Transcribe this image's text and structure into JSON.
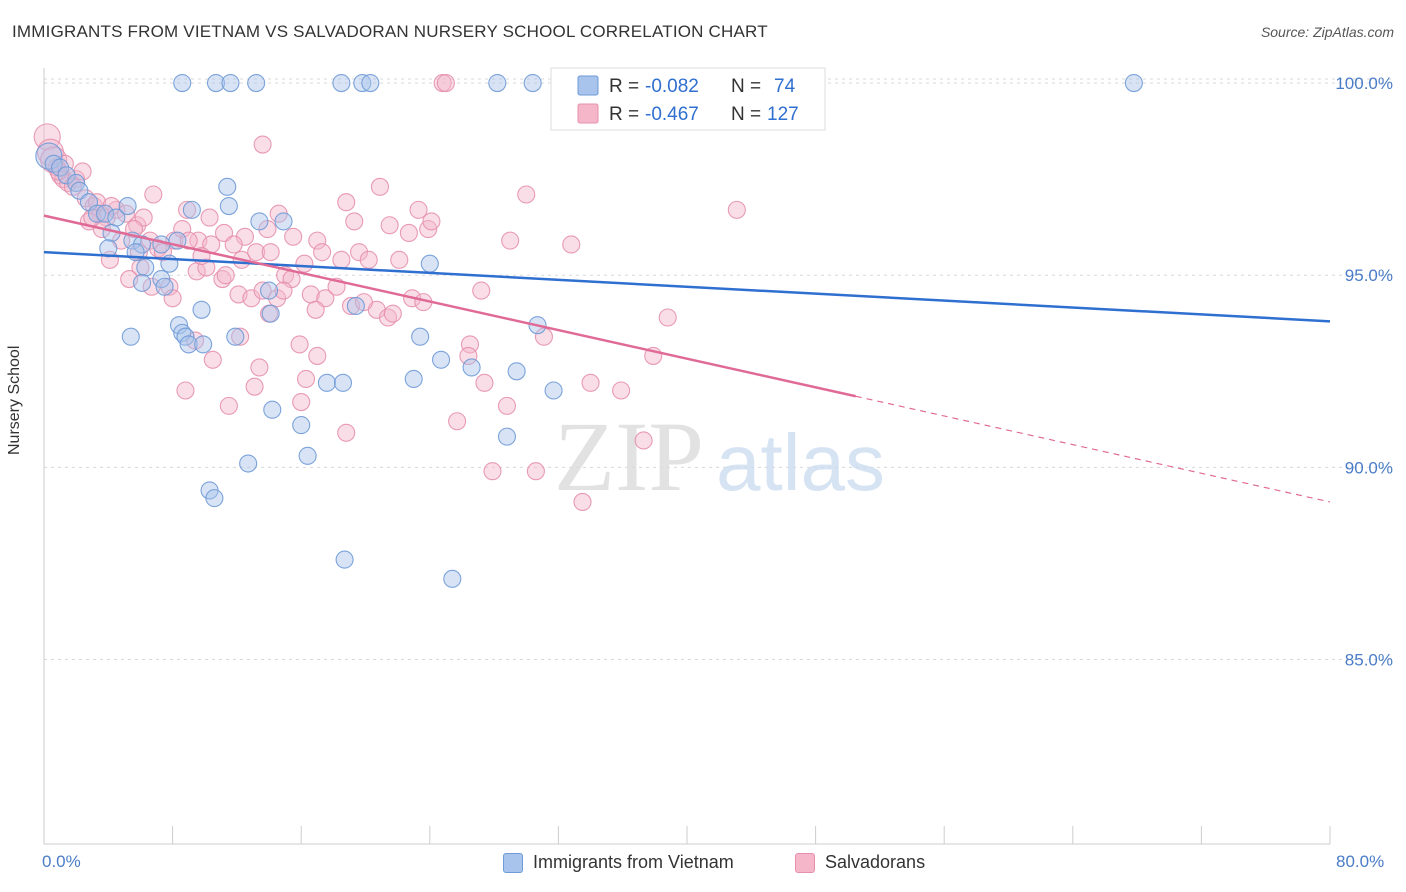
{
  "header": {
    "title": "IMMIGRANTS FROM VIETNAM VS SALVADORAN NURSERY SCHOOL CORRELATION CHART",
    "source": "Source: ZipAtlas.com"
  },
  "watermark": {
    "zip": "ZIP",
    "atlas": "atlas"
  },
  "colors": {
    "blue_fill": "#a9c4ec",
    "blue_stroke": "#6f9ad6",
    "blue_line": "#2f6fd0",
    "pink_fill": "#f5b6ca",
    "pink_stroke": "#e690ad",
    "pink_line": "#e06a96",
    "axis_text": "#4a7cc7"
  },
  "legend": {
    "rows": [
      {
        "r_label": "R =",
        "r_value": "-0.082",
        "n_label": "N =",
        "n_value": "74"
      },
      {
        "r_label": "R =",
        "r_value": "-0.467",
        "n_label": "N =",
        "n_value": "127"
      }
    ]
  },
  "chart_data": {
    "type": "scatter",
    "title": "IMMIGRANTS FROM VIETNAM VS SALVADORAN NURSERY SCHOOL CORRELATION CHART",
    "xlabel": "",
    "ylabel": "Nursery School",
    "xlim": [
      0,
      80
    ],
    "ylim": [
      80.2,
      100.6
    ],
    "x_tick_labels": [
      "0.0%",
      "80.0%"
    ],
    "y_ticks": [
      85,
      90,
      95,
      100
    ],
    "y_tick_labels": [
      "85.0%",
      "90.0%",
      "95.0%",
      "100.0%"
    ],
    "grid": true,
    "legend_position": "top-center",
    "series": [
      {
        "name": "Immigrants from Vietnam",
        "r": -0.082,
        "n": 74,
        "trend": {
          "x": [
            0,
            80
          ],
          "y": [
            95.6,
            93.8
          ]
        },
        "points": [
          [
            8.6,
            100
          ],
          [
            10.7,
            100
          ],
          [
            11.6,
            100
          ],
          [
            13.2,
            100
          ],
          [
            18.5,
            100
          ],
          [
            19.8,
            100
          ],
          [
            20.3,
            100
          ],
          [
            28.2,
            100
          ],
          [
            30.4,
            100
          ],
          [
            67.8,
            100
          ],
          [
            0.3,
            98.1
          ],
          [
            0.6,
            97.9
          ],
          [
            1.0,
            97.8
          ],
          [
            1.4,
            97.6
          ],
          [
            2.0,
            97.4
          ],
          [
            2.2,
            97.2
          ],
          [
            2.8,
            96.9
          ],
          [
            3.3,
            96.6
          ],
          [
            3.8,
            96.6
          ],
          [
            4.5,
            96.5
          ],
          [
            5.2,
            96.8
          ],
          [
            11.4,
            97.3
          ],
          [
            9.2,
            96.7
          ],
          [
            11.5,
            96.8
          ],
          [
            13.4,
            96.4
          ],
          [
            14.9,
            96.4
          ],
          [
            4.2,
            96.1
          ],
          [
            5.5,
            95.9
          ],
          [
            6.1,
            95.8
          ],
          [
            7.3,
            95.8
          ],
          [
            8.3,
            95.9
          ],
          [
            4.0,
            95.7
          ],
          [
            5.7,
            95.6
          ],
          [
            6.3,
            95.2
          ],
          [
            7.8,
            95.3
          ],
          [
            24.0,
            95.3
          ],
          [
            6.1,
            94.8
          ],
          [
            7.3,
            94.9
          ],
          [
            7.5,
            94.7
          ],
          [
            14.0,
            94.6
          ],
          [
            14.1,
            94.0
          ],
          [
            19.4,
            94.2
          ],
          [
            9.8,
            94.1
          ],
          [
            5.4,
            93.4
          ],
          [
            8.4,
            93.7
          ],
          [
            8.6,
            93.5
          ],
          [
            8.8,
            93.4
          ],
          [
            9.0,
            93.2
          ],
          [
            9.9,
            93.2
          ],
          [
            11.9,
            93.4
          ],
          [
            23.4,
            93.4
          ],
          [
            30.7,
            93.7
          ],
          [
            24.7,
            92.8
          ],
          [
            26.6,
            92.6
          ],
          [
            29.4,
            92.5
          ],
          [
            23.0,
            92.3
          ],
          [
            17.6,
            92.2
          ],
          [
            18.6,
            92.2
          ],
          [
            31.7,
            92.0
          ],
          [
            14.2,
            91.5
          ],
          [
            16.0,
            91.1
          ],
          [
            28.8,
            90.8
          ],
          [
            16.4,
            90.3
          ],
          [
            12.7,
            90.1
          ],
          [
            10.3,
            89.4
          ],
          [
            10.6,
            89.2
          ],
          [
            18.7,
            87.6
          ],
          [
            25.4,
            87.1
          ]
        ]
      },
      {
        "name": "Salvadorans",
        "r": -0.467,
        "n": 127,
        "trend": {
          "x": [
            0,
            50.5
          ],
          "y": [
            96.55,
            91.85
          ]
        },
        "trend_dashed": {
          "x": [
            50.5,
            80
          ],
          "y": [
            91.85,
            89.1
          ]
        },
        "points": [
          [
            0.2,
            98.6
          ],
          [
            0.4,
            98.2
          ],
          [
            0.6,
            98.0
          ],
          [
            0.8,
            97.8
          ],
          [
            1.0,
            97.6
          ],
          [
            1.2,
            97.5
          ],
          [
            1.5,
            97.4
          ],
          [
            2.0,
            97.5
          ],
          [
            2.6,
            97.0
          ],
          [
            3.1,
            96.8
          ],
          [
            3.5,
            96.6
          ],
          [
            3.9,
            96.5
          ],
          [
            4.5,
            96.7
          ],
          [
            5.1,
            96.6
          ],
          [
            5.8,
            96.3
          ],
          [
            6.2,
            96.5
          ],
          [
            6.8,
            97.1
          ],
          [
            13.6,
            98.4
          ],
          [
            24.8,
            100
          ],
          [
            25.0,
            100
          ],
          [
            8.9,
            96.7
          ],
          [
            10.3,
            96.5
          ],
          [
            11.2,
            96.1
          ],
          [
            12.5,
            96.0
          ],
          [
            13.9,
            96.2
          ],
          [
            14.6,
            96.6
          ],
          [
            15.5,
            96.0
          ],
          [
            17.0,
            95.9
          ],
          [
            18.8,
            96.9
          ],
          [
            19.3,
            96.4
          ],
          [
            20.9,
            97.3
          ],
          [
            21.5,
            96.3
          ],
          [
            22.7,
            96.1
          ],
          [
            23.3,
            96.7
          ],
          [
            23.9,
            96.2
          ],
          [
            24.1,
            96.4
          ],
          [
            29.0,
            95.9
          ],
          [
            30.0,
            97.1
          ],
          [
            2.8,
            96.4
          ],
          [
            3.6,
            96.2
          ],
          [
            4.8,
            95.9
          ],
          [
            5.9,
            95.6
          ],
          [
            6.6,
            95.9
          ],
          [
            7.1,
            95.7
          ],
          [
            8.1,
            95.9
          ],
          [
            8.6,
            96.2
          ],
          [
            9.6,
            95.9
          ],
          [
            10.4,
            95.8
          ],
          [
            11.8,
            95.8
          ],
          [
            12.3,
            95.4
          ],
          [
            13.2,
            95.6
          ],
          [
            14.1,
            95.6
          ],
          [
            15.0,
            95.0
          ],
          [
            16.2,
            95.3
          ],
          [
            17.3,
            95.6
          ],
          [
            18.5,
            95.4
          ],
          [
            19.6,
            95.6
          ],
          [
            20.2,
            95.4
          ],
          [
            22.1,
            95.4
          ],
          [
            32.8,
            95.8
          ],
          [
            43.1,
            96.7
          ],
          [
            4.1,
            95.4
          ],
          [
            6.7,
            94.7
          ],
          [
            7.8,
            94.7
          ],
          [
            8.0,
            94.4
          ],
          [
            9.5,
            95.1
          ],
          [
            10.1,
            95.2
          ],
          [
            11.1,
            94.9
          ],
          [
            12.1,
            94.5
          ],
          [
            12.9,
            94.4
          ],
          [
            13.6,
            94.6
          ],
          [
            14.5,
            94.4
          ],
          [
            15.4,
            94.9
          ],
          [
            16.6,
            94.5
          ],
          [
            17.5,
            94.4
          ],
          [
            18.2,
            94.7
          ],
          [
            19.1,
            94.2
          ],
          [
            20.7,
            94.1
          ],
          [
            21.4,
            93.9
          ],
          [
            22.9,
            94.4
          ],
          [
            27.2,
            94.6
          ],
          [
            38.8,
            93.9
          ],
          [
            9.4,
            93.3
          ],
          [
            10.5,
            92.8
          ],
          [
            12.2,
            93.4
          ],
          [
            13.4,
            92.6
          ],
          [
            14.0,
            94.0
          ],
          [
            15.9,
            93.2
          ],
          [
            17.0,
            92.9
          ],
          [
            26.5,
            93.2
          ],
          [
            27.4,
            92.2
          ],
          [
            31.1,
            93.4
          ],
          [
            37.9,
            92.9
          ],
          [
            8.8,
            92.0
          ],
          [
            11.5,
            91.6
          ],
          [
            13.1,
            92.1
          ],
          [
            16.0,
            91.7
          ],
          [
            16.3,
            92.3
          ],
          [
            18.8,
            90.9
          ],
          [
            25.7,
            91.2
          ],
          [
            28.8,
            91.6
          ],
          [
            34.0,
            92.2
          ],
          [
            35.9,
            92.0
          ],
          [
            37.3,
            90.7
          ],
          [
            27.9,
            89.9
          ],
          [
            30.6,
            89.9
          ],
          [
            33.5,
            89.1
          ],
          [
            26.4,
            92.9
          ],
          [
            21.7,
            94.0
          ],
          [
            9.0,
            95.9
          ],
          [
            6.0,
            95.2
          ],
          [
            5.3,
            94.9
          ],
          [
            3.3,
            96.9
          ],
          [
            2.4,
            97.7
          ],
          [
            1.8,
            97.3
          ],
          [
            0.9,
            97.7
          ],
          [
            1.3,
            97.9
          ],
          [
            3.0,
            96.5
          ],
          [
            4.2,
            96.8
          ],
          [
            5.6,
            96.2
          ],
          [
            7.4,
            95.6
          ],
          [
            9.8,
            95.5
          ],
          [
            11.3,
            95.0
          ],
          [
            14.9,
            94.6
          ],
          [
            16.9,
            94.1
          ],
          [
            19.9,
            94.3
          ],
          [
            23.6,
            94.3
          ]
        ]
      }
    ]
  },
  "bottom_legend": {
    "items": [
      "Immigrants from Vietnam",
      "Salvadorans"
    ]
  },
  "axis": {
    "x_min_label": "0.0%",
    "x_max_label": "80.0%"
  }
}
